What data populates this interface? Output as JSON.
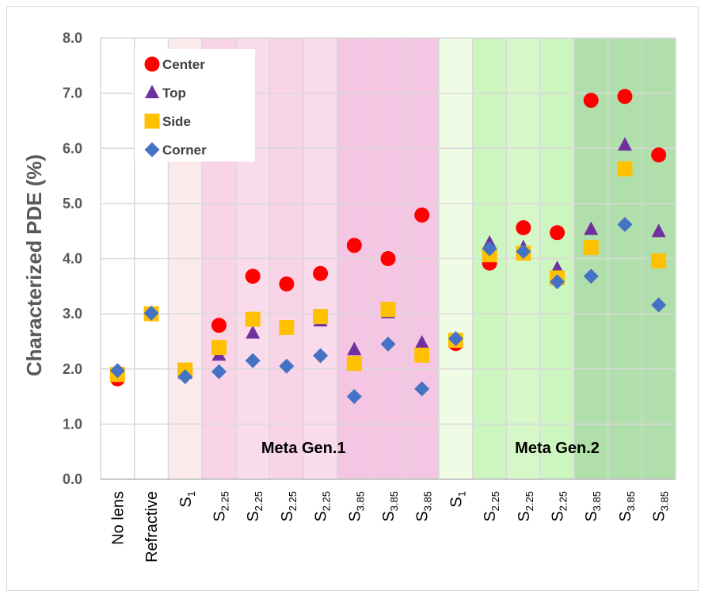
{
  "chart_data": {
    "type": "scatter",
    "ylabel": "Characterized PDE (%)",
    "ylim": [
      0,
      8
    ],
    "yticks": [
      "0.0",
      "1.0",
      "2.0",
      "3.0",
      "4.0",
      "5.0",
      "6.0",
      "7.0",
      "8.0"
    ],
    "grid": true,
    "legend_position": "top-left",
    "categories": [
      {
        "main": "No lens",
        "sub": ""
      },
      {
        "main": "Refractive",
        "sub": ""
      },
      {
        "main": "S",
        "sub": "1"
      },
      {
        "main": "S",
        "sub": "2.25"
      },
      {
        "main": "S",
        "sub": "2.25"
      },
      {
        "main": "S",
        "sub": "2.25"
      },
      {
        "main": "S",
        "sub": "2.25"
      },
      {
        "main": "S",
        "sub": "3.85"
      },
      {
        "main": "S",
        "sub": "3.85"
      },
      {
        "main": "S",
        "sub": "3.85"
      },
      {
        "main": "S",
        "sub": "1"
      },
      {
        "main": "S",
        "sub": "2.25"
      },
      {
        "main": "S",
        "sub": "2.25"
      },
      {
        "main": "S",
        "sub": "2.25"
      },
      {
        "main": "S",
        "sub": "3.85"
      },
      {
        "main": "S",
        "sub": "3.85"
      },
      {
        "main": "S",
        "sub": "3.85"
      }
    ],
    "regions": [
      {
        "label": "Meta Gen.1",
        "start": 2,
        "end": 9
      },
      {
        "label": "Meta Gen.2",
        "start": 10,
        "end": 16
      }
    ],
    "band_colors": [
      "#ffffff",
      "#ffffff",
      "#fbe9ec",
      "#f9d4e7",
      "#fadbeb",
      "#f9d4e7",
      "#fadbeb",
      "#f5c6e3",
      "#f5c6e3",
      "#f5c6e3",
      "#effbe4",
      "#cdf5bf",
      "#d6f8c8",
      "#cdf5bf",
      "#b0dfab",
      "#b0dfab",
      "#b0dfab"
    ],
    "series": [
      {
        "name": "Center",
        "marker": "circle",
        "color": "#ff0000",
        "values": [
          1.82,
          3.0,
          1.95,
          2.79,
          3.68,
          3.54,
          3.73,
          4.24,
          4.0,
          4.79,
          2.46,
          3.92,
          4.56,
          4.47,
          6.87,
          6.94,
          5.88
        ]
      },
      {
        "name": "Top",
        "marker": "triangle",
        "color": "#7030a0",
        "values": [
          1.9,
          3.0,
          1.92,
          2.25,
          2.65,
          2.72,
          2.87,
          2.35,
          3.02,
          2.47,
          2.5,
          4.28,
          4.2,
          3.82,
          4.53,
          6.06,
          4.49
        ]
      },
      {
        "name": "Side",
        "marker": "square",
        "color": "#ffc000",
        "values": [
          1.9,
          3.0,
          1.98,
          2.39,
          2.9,
          2.75,
          2.95,
          2.1,
          3.08,
          2.25,
          2.52,
          4.07,
          4.1,
          3.65,
          4.2,
          5.63,
          3.96
        ]
      },
      {
        "name": "Corner",
        "marker": "diamond",
        "color": "#4472c4",
        "values": [
          1.97,
          3.01,
          1.86,
          1.95,
          2.15,
          2.05,
          2.24,
          1.5,
          2.45,
          1.64,
          2.55,
          4.18,
          4.13,
          3.58,
          3.68,
          4.62,
          3.16
        ]
      }
    ]
  }
}
